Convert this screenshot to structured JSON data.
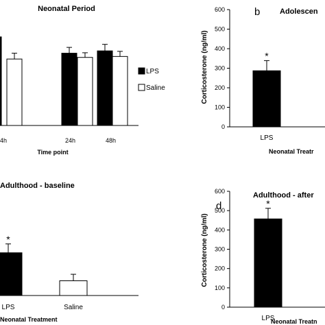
{
  "chart_data": [
    {
      "type": "bar",
      "title": "Neonatal Period",
      "xlabel": "Time point",
      "categories": [
        "4h",
        "24h",
        "48h"
      ],
      "series": [
        {
          "name": "LPS",
          "values": [
            380,
            310,
            320
          ],
          "errors": [
            0,
            25,
            28
          ],
          "color": "#000000"
        },
        {
          "name": "Saline",
          "values": [
            285,
            292,
            296
          ],
          "errors": [
            25,
            20,
            22
          ],
          "color": "#ffffff"
        }
      ],
      "legend": "right"
    },
    {
      "type": "bar",
      "panel_label": "b",
      "title": "Adolescen",
      "xlabel": "Neonatal Treatr",
      "ylabel": "Corticosterone (ng/ml)",
      "ylim": [
        0,
        600
      ],
      "yticks": [
        "0",
        "100",
        "200",
        "300",
        "400",
        "500",
        "600"
      ],
      "categories": [
        "LPS"
      ],
      "values": [
        287
      ],
      "errors": [
        52
      ],
      "annotation": "*"
    },
    {
      "type": "bar",
      "title": "Adulthood - baseline",
      "xlabel": "Neonatal Treatment",
      "categories": [
        "LPS",
        "Saline"
      ],
      "values": [
        145,
        50
      ],
      "errors": [
        30,
        22
      ],
      "annotation": "*"
    },
    {
      "type": "bar",
      "panel_label": "d",
      "title": "Adulthood - after",
      "xlabel": "Neonatal Treatn",
      "ylabel": "Corticosterone (ng/ml)",
      "ylim": [
        0,
        600
      ],
      "yticks": [
        "0",
        "100",
        "200",
        "300",
        "400",
        "500",
        "600"
      ],
      "categories": [
        "LPS"
      ],
      "values": [
        457
      ],
      "errors": [
        55
      ],
      "annotation": "*"
    }
  ]
}
